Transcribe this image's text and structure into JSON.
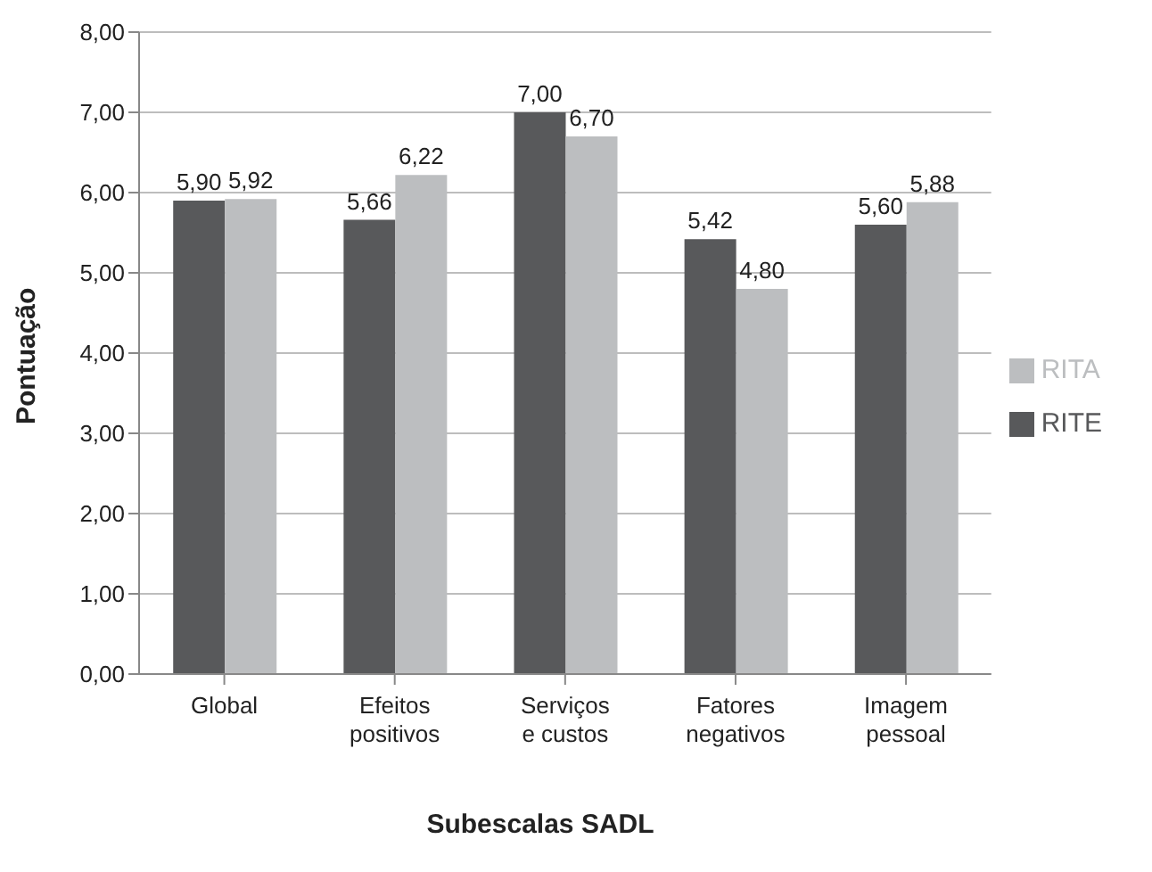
{
  "chart_data": {
    "type": "bar",
    "xlabel": "Subescalas SADL",
    "ylabel": "Pontuação",
    "categories": [
      "Global",
      "Efeitos positivos",
      "Serviços e custos",
      "Fatores negativos",
      "Imagem pessoal"
    ],
    "series": [
      {
        "name": "RITE",
        "color": "#58595b",
        "values": [
          5.9,
          5.66,
          7.0,
          5.42,
          5.6
        ],
        "value_labels": [
          "5,90",
          "5,66",
          "7,00",
          "5,42",
          "5,60"
        ]
      },
      {
        "name": "RITA",
        "color": "#bcbec0",
        "values": [
          5.92,
          6.22,
          6.7,
          4.8,
          5.88
        ],
        "value_labels": [
          "5,92",
          "6,22",
          "6,70",
          "4,80",
          "5,88"
        ]
      }
    ],
    "ylim": [
      0,
      8
    ],
    "yticks": [
      {
        "value": 0,
        "label": "0,00"
      },
      {
        "value": 1,
        "label": "1,00"
      },
      {
        "value": 2,
        "label": "2,00"
      },
      {
        "value": 3,
        "label": "3,00"
      },
      {
        "value": 4,
        "label": "4,00"
      },
      {
        "value": 5,
        "label": "5,00"
      },
      {
        "value": 6,
        "label": "6,00"
      },
      {
        "value": 7,
        "label": "7,00"
      },
      {
        "value": 8,
        "label": "8,00"
      }
    ],
    "grid": "y",
    "legend": "right"
  }
}
